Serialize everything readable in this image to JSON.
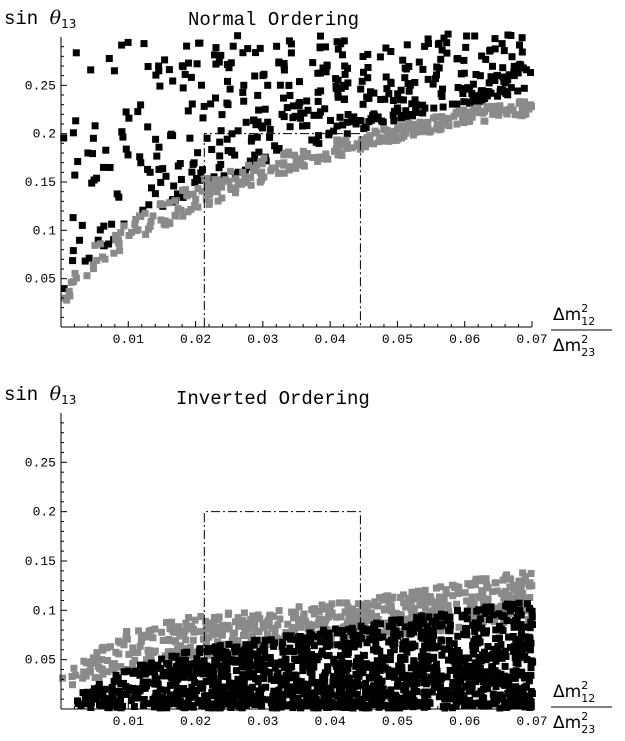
{
  "chart_data": [
    {
      "type": "scatter",
      "title": "Normal Ordering",
      "ylabel": {
        "prefix": "sin ",
        "symbol": "θ",
        "subscript": "13"
      },
      "xlabel": {
        "numerator": {
          "base": "Δm",
          "sup": "2",
          "sub": "12"
        },
        "denominator": {
          "base": "Δm",
          "sup": "2",
          "sub": "23"
        }
      },
      "xlim": [
        0,
        0.07
      ],
      "ylim": [
        0,
        0.3
      ],
      "x_ticks": [
        "0.01",
        "0.02",
        "0.03",
        "0.04",
        "0.05",
        "0.06",
        "0.07"
      ],
      "y_ticks": [
        "0.05",
        "0.1",
        "0.15",
        "0.2",
        "0.25"
      ],
      "allowed_region": {
        "x": [
          0.0213,
          0.0445
        ],
        "y_max": 0.2
      },
      "series": [
        {
          "color": "#000000",
          "lower_edge": [
            [
              0.0,
              0.03
            ],
            [
              0.005,
              0.075
            ],
            [
              0.01,
              0.1
            ],
            [
              0.02,
              0.14
            ],
            [
              0.03,
              0.17
            ],
            [
              0.045,
              0.205
            ],
            [
              0.06,
              0.23
            ],
            [
              0.07,
              0.245
            ]
          ]
        },
        {
          "color": "#8a8a8a",
          "band": [
            [
              0.0,
              0.02,
              0.04
            ],
            [
              0.005,
              0.06,
              0.085
            ],
            [
              0.01,
              0.085,
              0.11
            ],
            [
              0.02,
              0.12,
              0.15
            ],
            [
              0.03,
              0.15,
              0.175
            ],
            [
              0.045,
              0.185,
              0.2
            ],
            [
              0.06,
              0.21,
              0.225
            ],
            [
              0.07,
              0.22,
              0.235
            ]
          ]
        }
      ]
    },
    {
      "type": "scatter",
      "title": "Inverted Ordering",
      "ylabel": {
        "prefix": "sin ",
        "symbol": "θ",
        "subscript": "13"
      },
      "xlabel": {
        "numerator": {
          "base": "Δm",
          "sup": "2",
          "sub": "12"
        },
        "denominator": {
          "base": "Δm",
          "sup": "2",
          "sub": "23"
        }
      },
      "xlim": [
        0,
        0.07
      ],
      "ylim": [
        0,
        0.3
      ],
      "x_ticks": [
        "0.01",
        "0.02",
        "0.03",
        "0.04",
        "0.05",
        "0.06",
        "0.07"
      ],
      "y_ticks": [
        "0.05",
        "0.1",
        "0.15",
        "0.2",
        "0.25"
      ],
      "allowed_region": {
        "x": [
          0.0213,
          0.0445
        ],
        "y_max": 0.2
      },
      "series": [
        {
          "color": "#000000",
          "upper_edge": [
            [
              0.0,
              0.005
            ],
            [
              0.01,
              0.04
            ],
            [
              0.02,
              0.06
            ],
            [
              0.03,
              0.07
            ],
            [
              0.045,
              0.085
            ],
            [
              0.06,
              0.1
            ],
            [
              0.07,
              0.11
            ]
          ]
        },
        {
          "color": "#8a8a8a",
          "band": [
            [
              0.0,
              0.005,
              0.03
            ],
            [
              0.005,
              0.025,
              0.06
            ],
            [
              0.01,
              0.035,
              0.08
            ],
            [
              0.02,
              0.05,
              0.095
            ],
            [
              0.03,
              0.06,
              0.1
            ],
            [
              0.045,
              0.07,
              0.11
            ],
            [
              0.06,
              0.08,
              0.13
            ],
            [
              0.07,
              0.09,
              0.14
            ]
          ]
        }
      ]
    }
  ]
}
